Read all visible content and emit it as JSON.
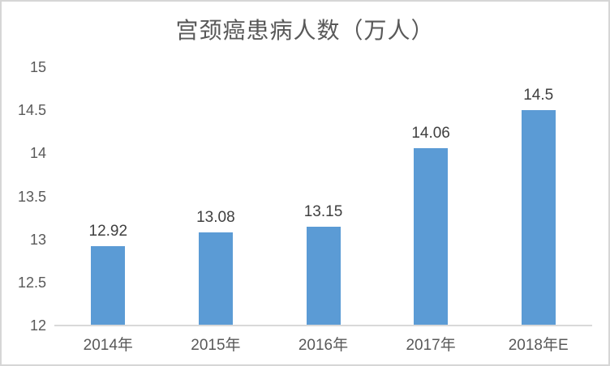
{
  "chart_data": {
    "type": "bar",
    "title": "宫颈癌患病人数（万人）",
    "categories": [
      "2014年",
      "2015年",
      "2016年",
      "2017年",
      "2018年E"
    ],
    "values": [
      12.92,
      13.08,
      13.15,
      14.06,
      14.5
    ],
    "data_labels": [
      "12.92",
      "13.08",
      "13.15",
      "14.06",
      "14.5"
    ],
    "xlabel": "",
    "ylabel": "",
    "ylim": [
      12,
      15
    ],
    "y_tick_step": 0.5,
    "y_tick_labels": [
      "12",
      "12.5",
      "13",
      "13.5",
      "14",
      "14.5",
      "15"
    ],
    "grid": false,
    "legend": false,
    "colors": {
      "bar": "#5b9bd5",
      "axis_line": "#d9d9d9",
      "title_text": "#595959",
      "tick_text": "#595959",
      "data_label_text": "#3f3f3f",
      "border": "#d6d6d6",
      "background": "#ffffff"
    }
  }
}
